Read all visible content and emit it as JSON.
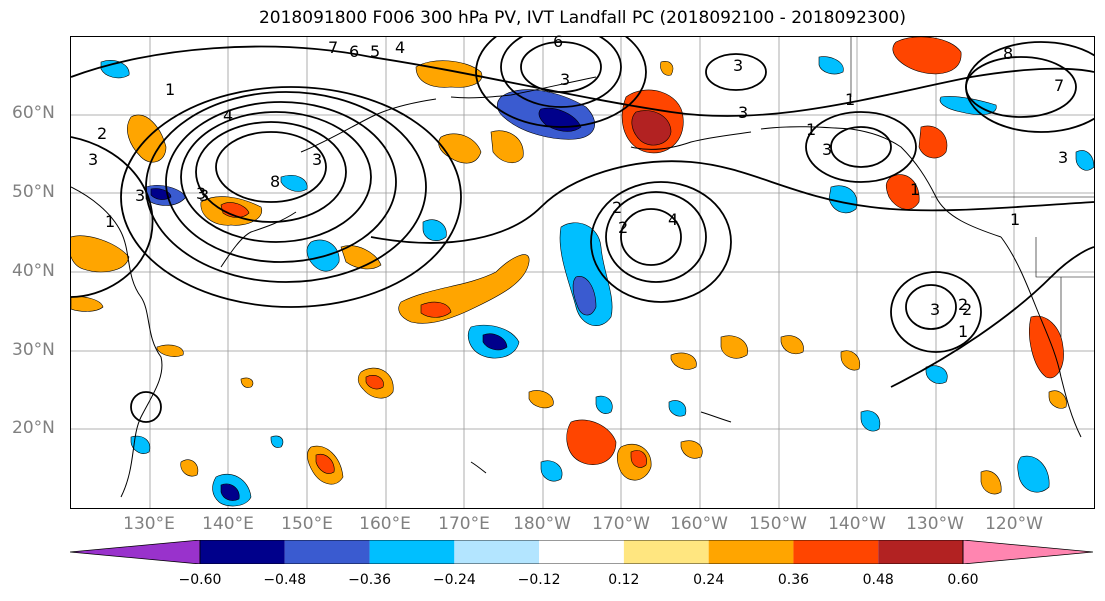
{
  "title": "2018091800 F006 300 hPa PV, IVT Landfall PC (2018092100 - 2018092300)",
  "lat_labels": [
    "60°N",
    "50°N",
    "40°N",
    "30°N",
    "20°N"
  ],
  "lon_labels": [
    "130°E",
    "140°E",
    "150°E",
    "160°E",
    "170°E",
    "180°W",
    "170°W",
    "160°W",
    "150°W",
    "140°W",
    "130°W",
    "120°W"
  ],
  "colorbar": {
    "colors": [
      "#9932cc",
      "#00008b",
      "#3a5bd0",
      "#00bfff",
      "#b3e5ff",
      "#ffffff",
      "#ffe680",
      "#ffa500",
      "#ff4500",
      "#b22222",
      "#ff85b0"
    ],
    "tick_labels": [
      "−0.60",
      "−0.48",
      "−0.36",
      "−0.24",
      "−0.12",
      "0.12",
      "0.24",
      "0.36",
      "0.48",
      "0.60"
    ]
  },
  "contour_labels": [
    "7",
    "6",
    "5",
    "4",
    "3",
    "1",
    "2",
    "3",
    "4",
    "8",
    "3",
    "2",
    "4",
    "3",
    "1",
    "6",
    "3",
    "3",
    "2",
    "3",
    "3",
    "1",
    "3",
    "2",
    "1",
    "8",
    "7",
    "3",
    "1",
    "3",
    "1",
    "2",
    "1"
  ]
}
